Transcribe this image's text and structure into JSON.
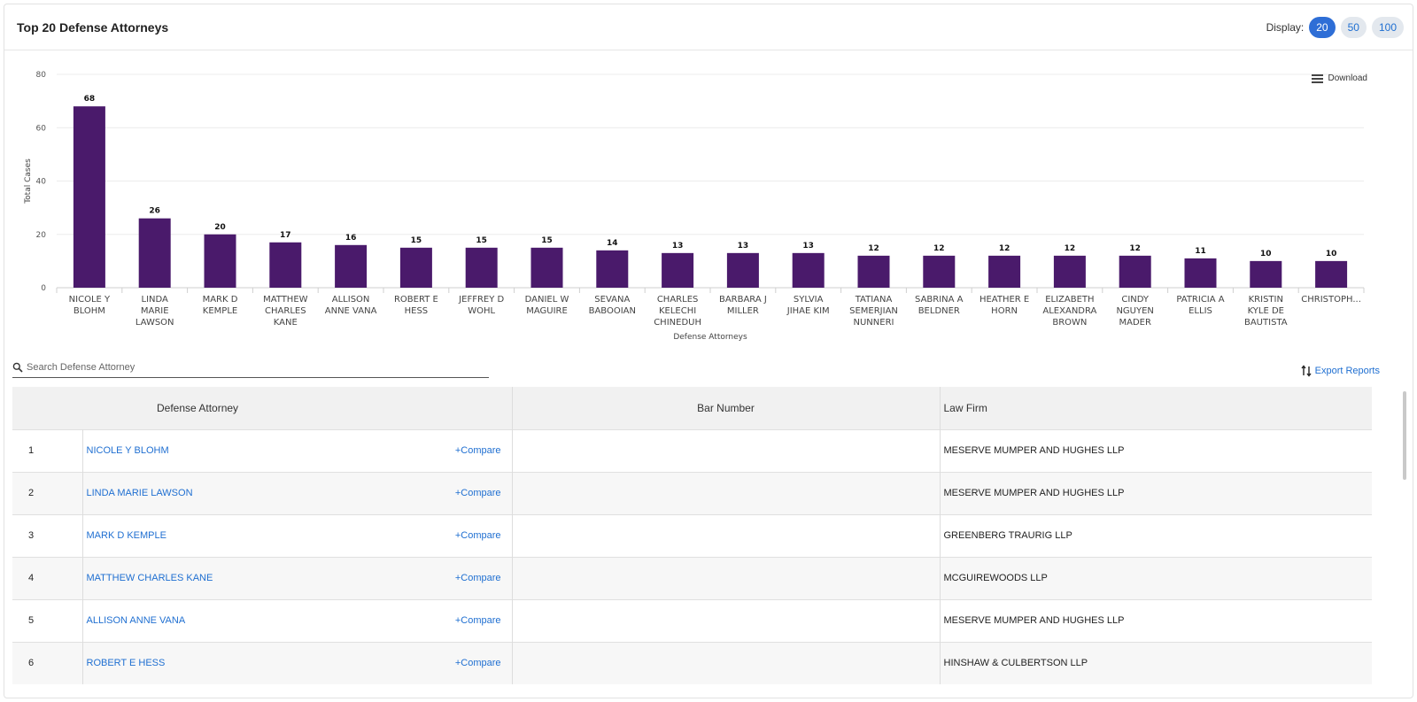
{
  "header": {
    "title": "Top 20 Defense Attorneys",
    "display_label": "Display:",
    "display_options": [
      "20",
      "50",
      "100"
    ],
    "display_selected": "20"
  },
  "download_label": "Download",
  "chart_data": {
    "type": "bar",
    "categories": [
      [
        "NICOLE Y",
        "BLOHM"
      ],
      [
        "LINDA",
        "MARIE",
        "LAWSON"
      ],
      [
        "MARK D",
        "KEMPLE"
      ],
      [
        "MATTHEW",
        "CHARLES",
        "KANE"
      ],
      [
        "ALLISON",
        "ANNE VANA"
      ],
      [
        "ROBERT E",
        "HESS"
      ],
      [
        "JEFFREY D",
        "WOHL"
      ],
      [
        "DANIEL W",
        "MAGUIRE"
      ],
      [
        "SEVANA",
        "BABOOIAN"
      ],
      [
        "CHARLES",
        "KELECHI",
        "CHINEDUH"
      ],
      [
        "BARBARA J",
        "MILLER"
      ],
      [
        "SYLVIA",
        "JIHAE KIM"
      ],
      [
        "TATIANA",
        "SEMERJIAN",
        "NUNNERI"
      ],
      [
        "SABRINA A",
        "BELDNER"
      ],
      [
        "HEATHER E",
        "HORN"
      ],
      [
        "ELIZABETH",
        "ALEXANDRA",
        "BROWN"
      ],
      [
        "CINDY",
        "NGUYEN",
        "MADER"
      ],
      [
        "PATRICIA A",
        "ELLIS"
      ],
      [
        "KRISTIN",
        "KYLE DE",
        "BAUTISTA"
      ],
      [
        "CHRISTOPH..."
      ]
    ],
    "values": [
      68,
      26,
      20,
      17,
      16,
      15,
      15,
      15,
      14,
      13,
      13,
      13,
      12,
      12,
      12,
      12,
      12,
      11,
      10,
      10
    ],
    "xlabel": "Defense Attorneys",
    "ylabel": "Total Cases",
    "ylim": [
      0,
      80
    ],
    "yticks": [
      0,
      20,
      40,
      60,
      80
    ],
    "bar_color": "#4a1a6b",
    "grid": true
  },
  "search": {
    "placeholder": "Search Defense Attorney",
    "value": ""
  },
  "export_label": "Export Reports",
  "table": {
    "columns": [
      "",
      "Defense Attorney",
      "Bar Number",
      "Law Firm"
    ],
    "compare_label": "+Compare",
    "rows": [
      {
        "idx": "1",
        "name": "NICOLE Y BLOHM",
        "bar": "",
        "firm": "MESERVE MUMPER AND HUGHES LLP"
      },
      {
        "idx": "2",
        "name": "LINDA MARIE LAWSON",
        "bar": "",
        "firm": "MESERVE MUMPER AND HUGHES LLP"
      },
      {
        "idx": "3",
        "name": "MARK D KEMPLE",
        "bar": "",
        "firm": "GREENBERG TRAURIG LLP"
      },
      {
        "idx": "4",
        "name": "MATTHEW CHARLES KANE",
        "bar": "",
        "firm": "MCGUIREWOODS LLP"
      },
      {
        "idx": "5",
        "name": "ALLISON ANNE VANA",
        "bar": "",
        "firm": "MESERVE MUMPER AND HUGHES LLP"
      },
      {
        "idx": "6",
        "name": "ROBERT E HESS",
        "bar": "",
        "firm": "HINSHAW & CULBERTSON LLP"
      }
    ]
  }
}
